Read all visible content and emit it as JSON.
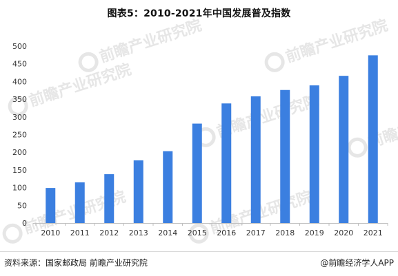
{
  "title": "图表5：2010-2021年中国发展普及指数",
  "source": "资料来源：国家邮政局 前瞻产业研究院",
  "credit": "@前瞻经济学人APP",
  "watermark": {
    "text": "前瞻产业研究院",
    "icon": "qianzhan-logo-icon"
  },
  "colors": {
    "bar": "#3b7fe0",
    "axis": "#bfbfbf",
    "tick_text": "#333333",
    "watermark": "#e6e6e6"
  },
  "chart_data": {
    "type": "bar",
    "title": "图表5：2010-2021年中国发展普及指数",
    "xlabel": "",
    "ylabel": "",
    "categories": [
      "2010",
      "2011",
      "2012",
      "2013",
      "2014",
      "2015",
      "2016",
      "2017",
      "2018",
      "2019",
      "2020",
      "2021"
    ],
    "values": [
      99,
      115,
      138,
      177,
      203,
      281,
      338,
      358,
      376,
      389,
      416,
      474
    ],
    "ylim": [
      0,
      500
    ],
    "yticks": [
      "0",
      "50",
      "100",
      "150",
      "200",
      "250",
      "300",
      "350",
      "400",
      "450",
      "500"
    ],
    "grid": false,
    "legend": "none"
  }
}
